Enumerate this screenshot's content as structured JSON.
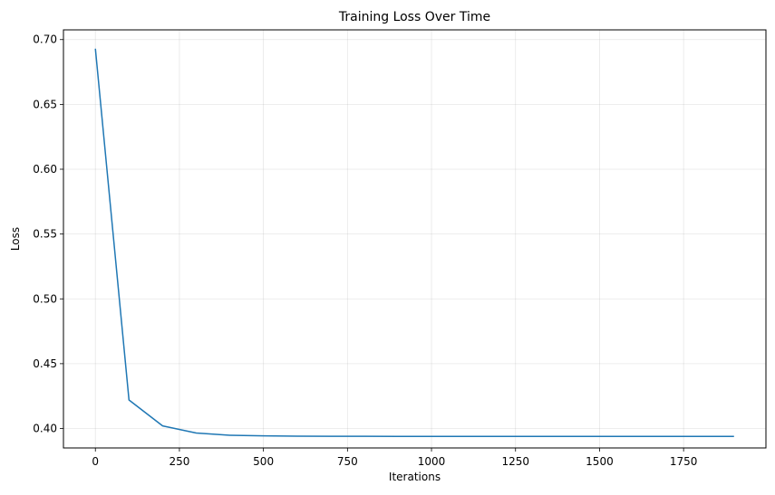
{
  "chart_data": {
    "type": "line",
    "title": "Training Loss Over Time",
    "xlabel": "Iterations",
    "ylabel": "Loss",
    "xlim": [
      -95,
      1995
    ],
    "ylim": [
      0.385,
      0.7075
    ],
    "x_ticks": [
      0,
      250,
      500,
      750,
      1000,
      1250,
      1500,
      1750
    ],
    "x_tick_labels": [
      "0",
      "250",
      "500",
      "750",
      "1000",
      "1250",
      "1500",
      "1750"
    ],
    "y_ticks": [
      0.4,
      0.45,
      0.5,
      0.55,
      0.6,
      0.65,
      0.7
    ],
    "y_tick_labels": [
      "0.40",
      "0.45",
      "0.50",
      "0.55",
      "0.60",
      "0.65",
      "0.70"
    ],
    "grid": true,
    "series": [
      {
        "color": "#1f77b4",
        "x": [
          0,
          100,
          200,
          300,
          400,
          500,
          600,
          700,
          800,
          900,
          1000,
          1100,
          1200,
          1300,
          1400,
          1500,
          1600,
          1700,
          1800,
          1900
        ],
        "y": [
          0.693,
          0.422,
          0.402,
          0.3965,
          0.3948,
          0.3943,
          0.3941,
          0.394,
          0.394,
          0.3939,
          0.3939,
          0.3939,
          0.3939,
          0.3939,
          0.3939,
          0.3939,
          0.3939,
          0.3939,
          0.3939,
          0.3939
        ]
      }
    ]
  }
}
